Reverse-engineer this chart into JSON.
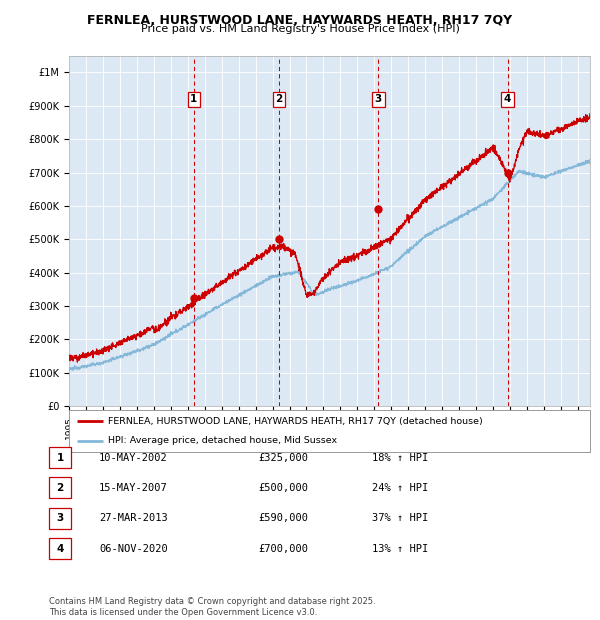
{
  "title_line1": "FERNLEA, HURSTWOOD LANE, HAYWARDS HEATH, RH17 7QY",
  "title_line2": "Price paid vs. HM Land Registry's House Price Index (HPI)",
  "background_color": "#ffffff",
  "plot_bg_color": "#dce9f5",
  "sale_color": "#cc0000",
  "hpi_color": "#85b8d8",
  "sale_dot_color": "#cc0000",
  "dashed_line_color": "#cc0000",
  "ylim": [
    0,
    1050000
  ],
  "yticks": [
    0,
    100000,
    200000,
    300000,
    400000,
    500000,
    600000,
    700000,
    800000,
    900000,
    1000000
  ],
  "ytick_labels": [
    "£0",
    "£100K",
    "£200K",
    "£300K",
    "£400K",
    "£500K",
    "£600K",
    "£700K",
    "£800K",
    "£900K",
    "£1M"
  ],
  "sale_points": [
    {
      "label": "1",
      "date": 2002.36,
      "price": 325000
    },
    {
      "label": "2",
      "date": 2007.37,
      "price": 500000
    },
    {
      "label": "3",
      "date": 2013.24,
      "price": 590000
    },
    {
      "label": "4",
      "date": 2020.85,
      "price": 700000
    }
  ],
  "legend_sale_label": "FERNLEA, HURSTWOOD LANE, HAYWARDS HEATH, RH17 7QY (detached house)",
  "legend_hpi_label": "HPI: Average price, detached house, Mid Sussex",
  "table_rows": [
    {
      "num": "1",
      "date": "10-MAY-2002",
      "price": "£325,000",
      "hpi": "18% ↑ HPI"
    },
    {
      "num": "2",
      "date": "15-MAY-2007",
      "price": "£500,000",
      "hpi": "24% ↑ HPI"
    },
    {
      "num": "3",
      "date": "27-MAR-2013",
      "price": "£590,000",
      "hpi": "37% ↑ HPI"
    },
    {
      "num": "4",
      "date": "06-NOV-2020",
      "price": "£700,000",
      "hpi": "13% ↑ HPI"
    }
  ],
  "footnote": "Contains HM Land Registry data © Crown copyright and database right 2025.\nThis data is licensed under the Open Government Licence v3.0.",
  "xstart": 1995.0,
  "xend": 2025.7
}
